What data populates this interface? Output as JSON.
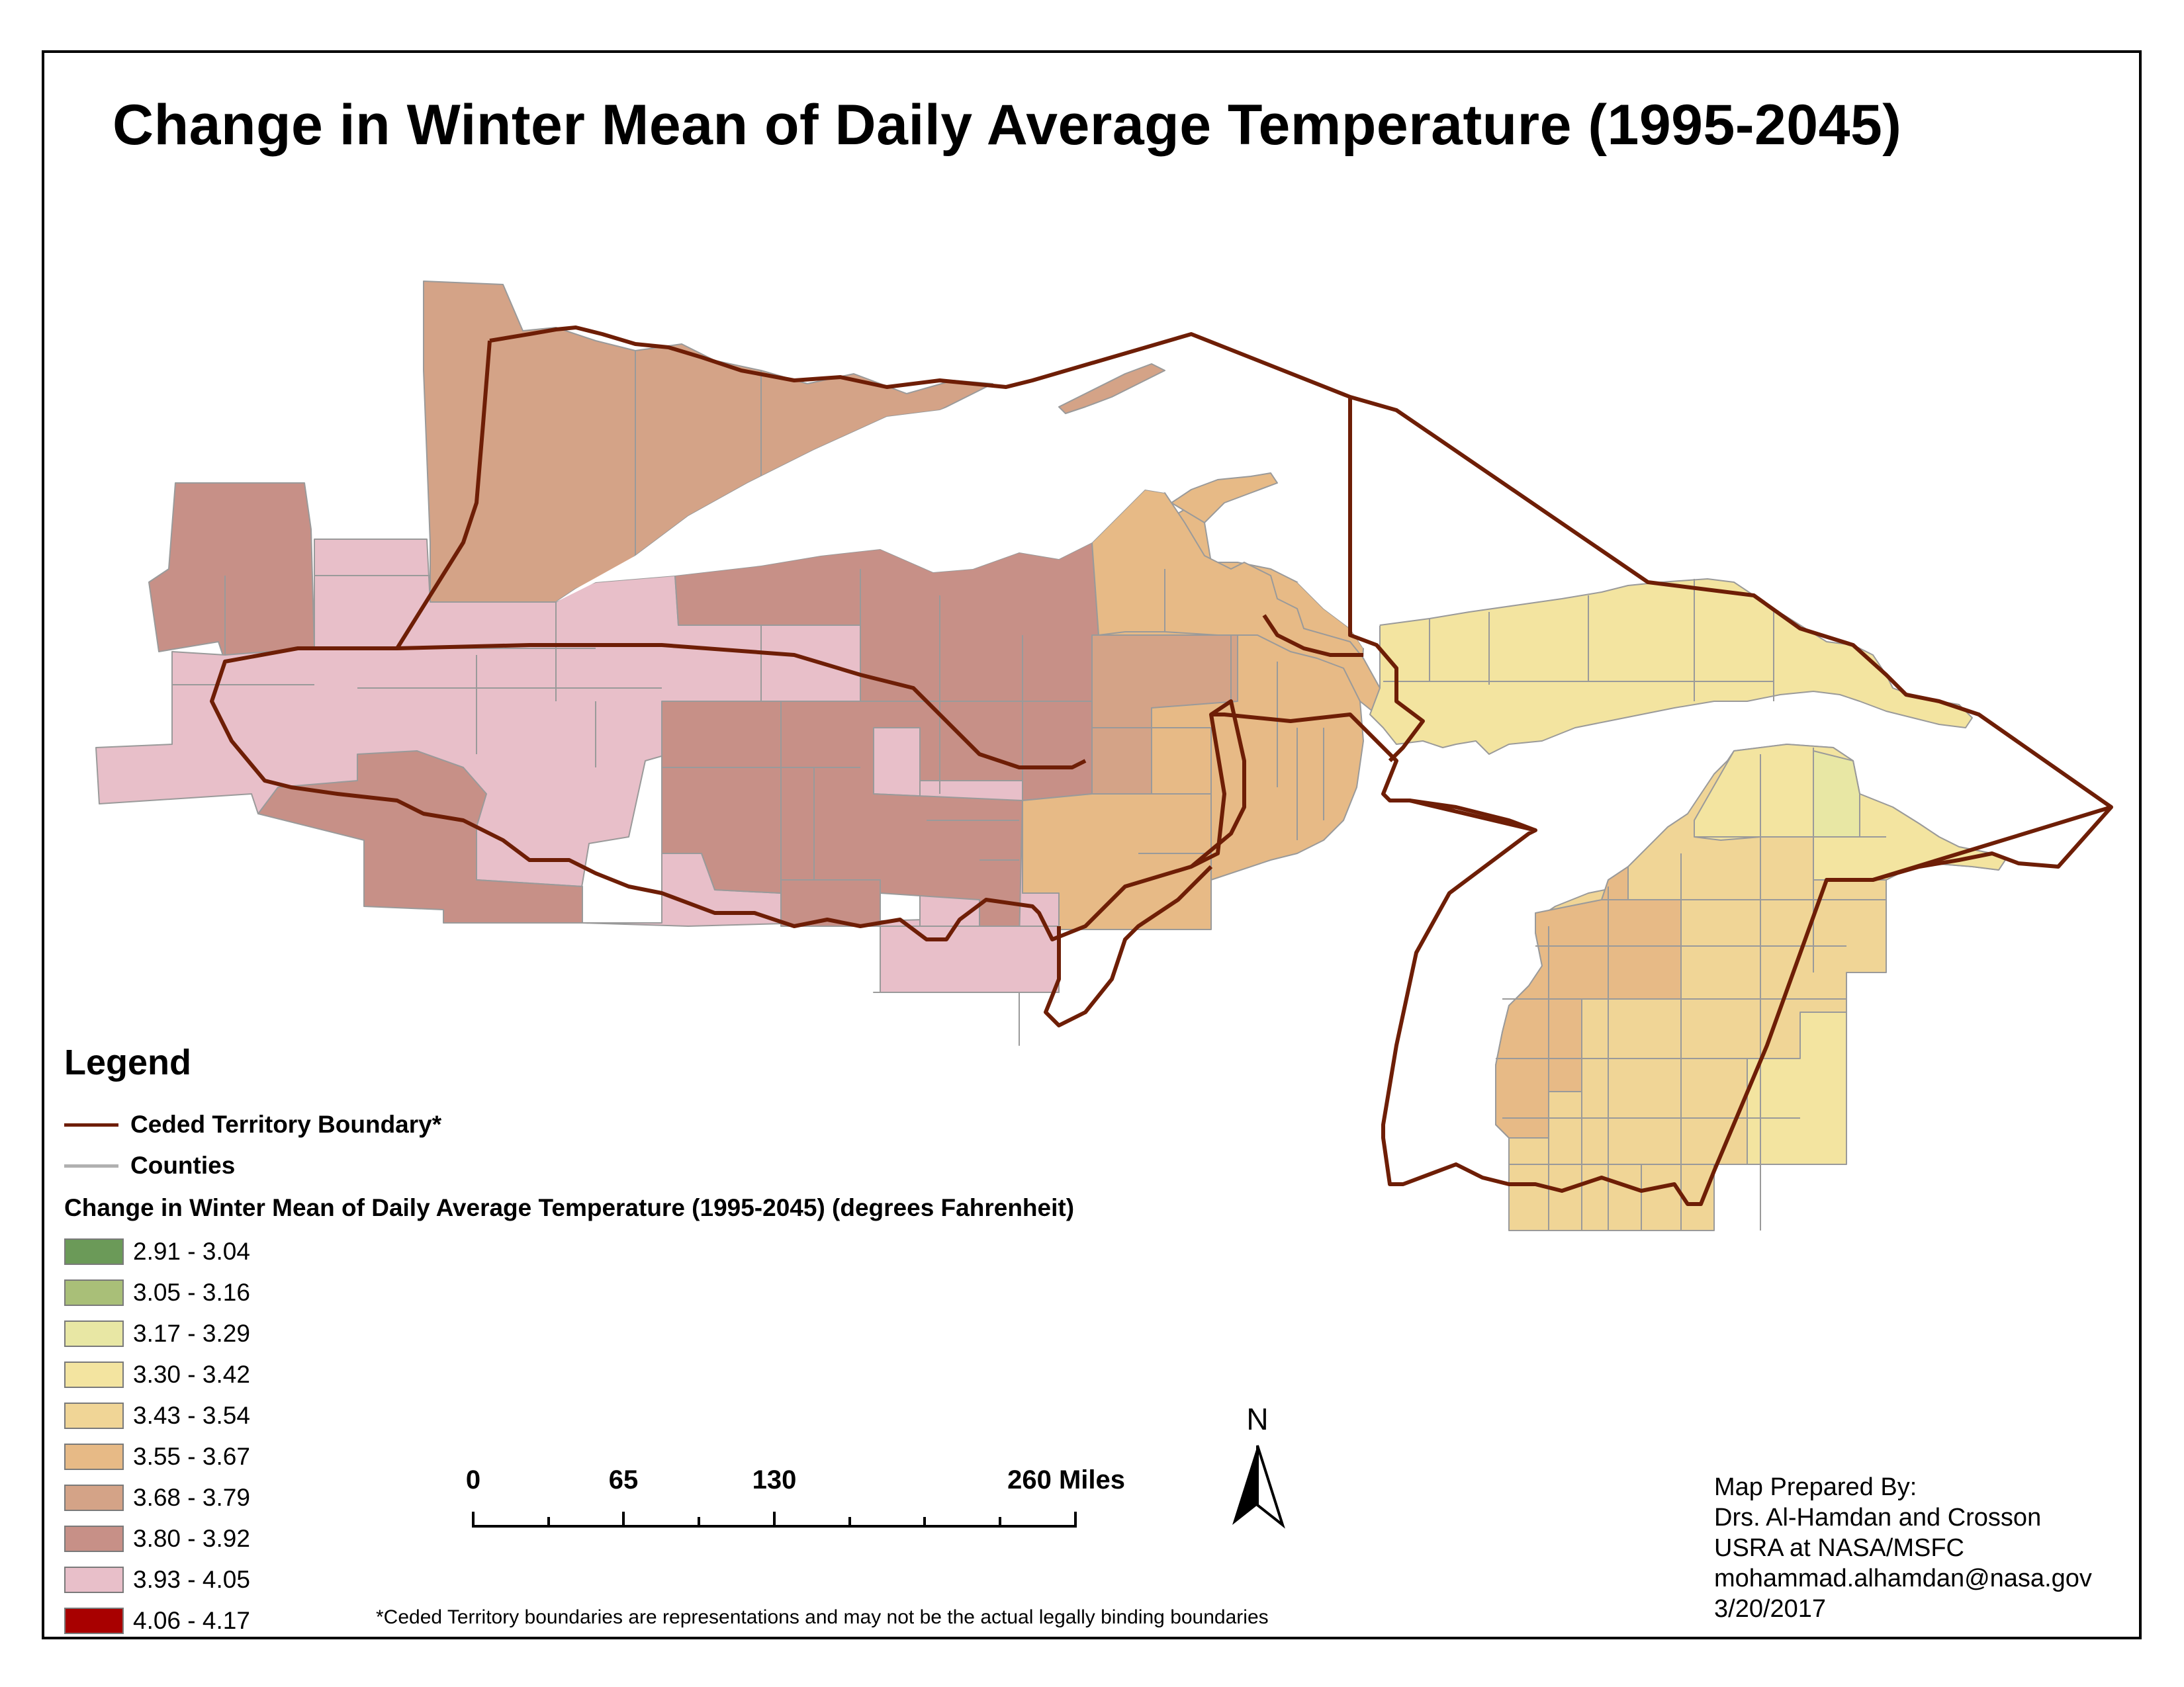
{
  "title": "Change in Winter Mean of Daily Average Temperature (1995-2045)",
  "legend": {
    "title": "Legend",
    "boundary_label": "Ceded Territory Boundary*",
    "boundary_color": "#6e1e06",
    "counties_label": "Counties",
    "counties_color": "#b0b0b0",
    "classification_title": "Change in Winter Mean of Daily Average Temperature (1995-2045) (degrees Fahrenheit)",
    "classes": [
      {
        "label": "2.91 - 3.04",
        "color": "#6b9a58"
      },
      {
        "label": "3.05 - 3.16",
        "color": "#a9bf78"
      },
      {
        "label": "3.17 - 3.29",
        "color": "#e8e7a4"
      },
      {
        "label": "3.30 - 3.42",
        "color": "#f3e4a0"
      },
      {
        "label": "3.43 - 3.54",
        "color": "#f0d596"
      },
      {
        "label": "3.55 - 3.67",
        "color": "#e7ba86"
      },
      {
        "label": "3.68 - 3.79",
        "color": "#d4a387"
      },
      {
        "label": "3.80 - 3.92",
        "color": "#c79087"
      },
      {
        "label": "3.93 - 4.05",
        "color": "#e8bfc9"
      },
      {
        "label": "4.06 - 4.17",
        "color": "#a80000"
      }
    ]
  },
  "scale_bar": {
    "labels": [
      "0",
      "65",
      "130",
      "260 Miles"
    ]
  },
  "north_arrow": {
    "label": "N",
    "icon": "north-arrow-icon"
  },
  "credits": {
    "line1": "Map Prepared By:",
    "line2": "Drs. Al-Hamdan and Crosson",
    "line3": "USRA at NASA/MSFC",
    "line4": "mohammad.alhamdan@nasa.gov",
    "line5": "3/20/2017"
  },
  "footnote": "*Ceded Territory boundaries are representations and may not be the actual legally binding boundaries"
}
